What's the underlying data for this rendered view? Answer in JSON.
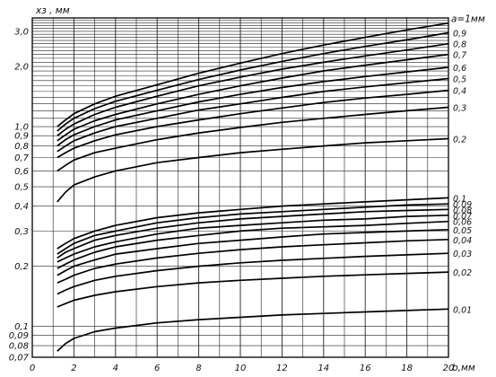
{
  "chart_data": {
    "type": "line",
    "ylabel": "xз , мм",
    "xlabel": "b,мм",
    "legend_title": "a=1мм",
    "xlim": [
      0,
      20
    ],
    "ylim": [
      0.07,
      3.5
    ],
    "yscale": "log",
    "grid": true,
    "x_ticks": [
      "0",
      "2",
      "4",
      "6",
      "8",
      "10",
      "12",
      "14",
      "16",
      "18",
      "20"
    ],
    "y_ticks": [
      {
        "value": 3.0,
        "label": "3,0"
      },
      {
        "value": 2.0,
        "label": "2,0"
      },
      {
        "value": 1.0,
        "label": "1,0"
      },
      {
        "value": 0.9,
        "label": "0,9"
      },
      {
        "value": 0.8,
        "label": "0,8"
      },
      {
        "value": 0.7,
        "label": "0,7"
      },
      {
        "value": 0.6,
        "label": "0,6"
      },
      {
        "value": 0.5,
        "label": "0,5"
      },
      {
        "value": 0.4,
        "label": "0,4"
      },
      {
        "value": 0.3,
        "label": "0,3"
      },
      {
        "value": 0.2,
        "label": "0,2"
      },
      {
        "value": 0.1,
        "label": "0,1"
      },
      {
        "value": 0.09,
        "label": "0,09"
      },
      {
        "value": 0.08,
        "label": "0,08"
      },
      {
        "value": 0.07,
        "label": "0,07"
      }
    ],
    "x": [
      1.2,
      1.6,
      2,
      3,
      4,
      6,
      8,
      10,
      12,
      14,
      16,
      18,
      20
    ],
    "series": [
      {
        "label": "",
        "values": [
          1.0,
          1.08,
          1.16,
          1.3,
          1.42,
          1.62,
          1.85,
          2.08,
          2.32,
          2.56,
          2.8,
          3.05,
          3.3
        ]
      },
      {
        "label": "0,9",
        "values": [
          0.95,
          1.03,
          1.1,
          1.23,
          1.34,
          1.52,
          1.72,
          1.92,
          2.12,
          2.32,
          2.52,
          2.72,
          2.95
        ]
      },
      {
        "label": "0,8",
        "values": [
          0.9,
          0.97,
          1.03,
          1.15,
          1.25,
          1.42,
          1.6,
          1.77,
          1.94,
          2.1,
          2.26,
          2.42,
          2.6
        ]
      },
      {
        "label": "0,7",
        "values": [
          0.85,
          0.91,
          0.97,
          1.07,
          1.15,
          1.3,
          1.45,
          1.6,
          1.75,
          1.9,
          2.03,
          2.16,
          2.3
        ]
      },
      {
        "label": "0,6",
        "values": [
          0.8,
          0.86,
          0.91,
          1.0,
          1.08,
          1.2,
          1.33,
          1.45,
          1.57,
          1.68,
          1.78,
          1.88,
          1.98
        ]
      },
      {
        "label": "0,5",
        "values": [
          0.75,
          0.8,
          0.85,
          0.93,
          1.0,
          1.1,
          1.21,
          1.3,
          1.4,
          1.5,
          1.58,
          1.66,
          1.74
        ]
      },
      {
        "label": "0,4",
        "values": [
          0.7,
          0.74,
          0.78,
          0.85,
          0.91,
          1.0,
          1.08,
          1.16,
          1.24,
          1.32,
          1.39,
          1.45,
          1.52
        ]
      },
      {
        "label": "0,3",
        "values": [
          0.6,
          0.64,
          0.68,
          0.74,
          0.78,
          0.86,
          0.93,
          0.99,
          1.05,
          1.1,
          1.15,
          1.2,
          1.25
        ]
      },
      {
        "label": "0,2",
        "values": [
          0.42,
          0.47,
          0.51,
          0.56,
          0.6,
          0.66,
          0.7,
          0.74,
          0.77,
          0.8,
          0.83,
          0.85,
          0.87
        ]
      },
      {
        "label": "0,1",
        "values": [
          0.245,
          0.26,
          0.275,
          0.3,
          0.32,
          0.35,
          0.37,
          0.385,
          0.4,
          0.41,
          0.42,
          0.43,
          0.44
        ]
      },
      {
        "label": "0,09",
        "values": [
          0.23,
          0.245,
          0.26,
          0.285,
          0.3,
          0.33,
          0.35,
          0.365,
          0.375,
          0.385,
          0.395,
          0.405,
          0.41
        ]
      },
      {
        "label": "0,08",
        "values": [
          0.22,
          0.235,
          0.245,
          0.27,
          0.285,
          0.31,
          0.33,
          0.345,
          0.355,
          0.365,
          0.375,
          0.38,
          0.385
        ]
      },
      {
        "label": "0,07",
        "values": [
          0.21,
          0.22,
          0.23,
          0.25,
          0.265,
          0.29,
          0.31,
          0.32,
          0.33,
          0.34,
          0.345,
          0.355,
          0.36
        ]
      },
      {
        "label": "0,06",
        "values": [
          0.195,
          0.205,
          0.215,
          0.235,
          0.25,
          0.27,
          0.285,
          0.3,
          0.31,
          0.315,
          0.32,
          0.328,
          0.335
        ]
      },
      {
        "label": "0,05",
        "values": [
          0.18,
          0.19,
          0.2,
          0.215,
          0.23,
          0.245,
          0.26,
          0.27,
          0.28,
          0.29,
          0.295,
          0.3,
          0.305
        ]
      },
      {
        "label": "0,04",
        "values": [
          0.165,
          0.172,
          0.18,
          0.195,
          0.205,
          0.22,
          0.232,
          0.242,
          0.25,
          0.256,
          0.262,
          0.268,
          0.272
        ]
      },
      {
        "label": "0,03",
        "values": [
          0.145,
          0.152,
          0.158,
          0.17,
          0.178,
          0.19,
          0.2,
          0.208,
          0.214,
          0.219,
          0.224,
          0.228,
          0.232
        ]
      },
      {
        "label": "0,02",
        "values": [
          0.125,
          0.13,
          0.135,
          0.143,
          0.149,
          0.158,
          0.165,
          0.17,
          0.174,
          0.178,
          0.181,
          0.184,
          0.187
        ]
      },
      {
        "label": "0,01",
        "values": [
          0.075,
          0.082,
          0.087,
          0.094,
          0.098,
          0.104,
          0.108,
          0.111,
          0.114,
          0.116,
          0.118,
          0.12,
          0.122
        ]
      }
    ]
  }
}
